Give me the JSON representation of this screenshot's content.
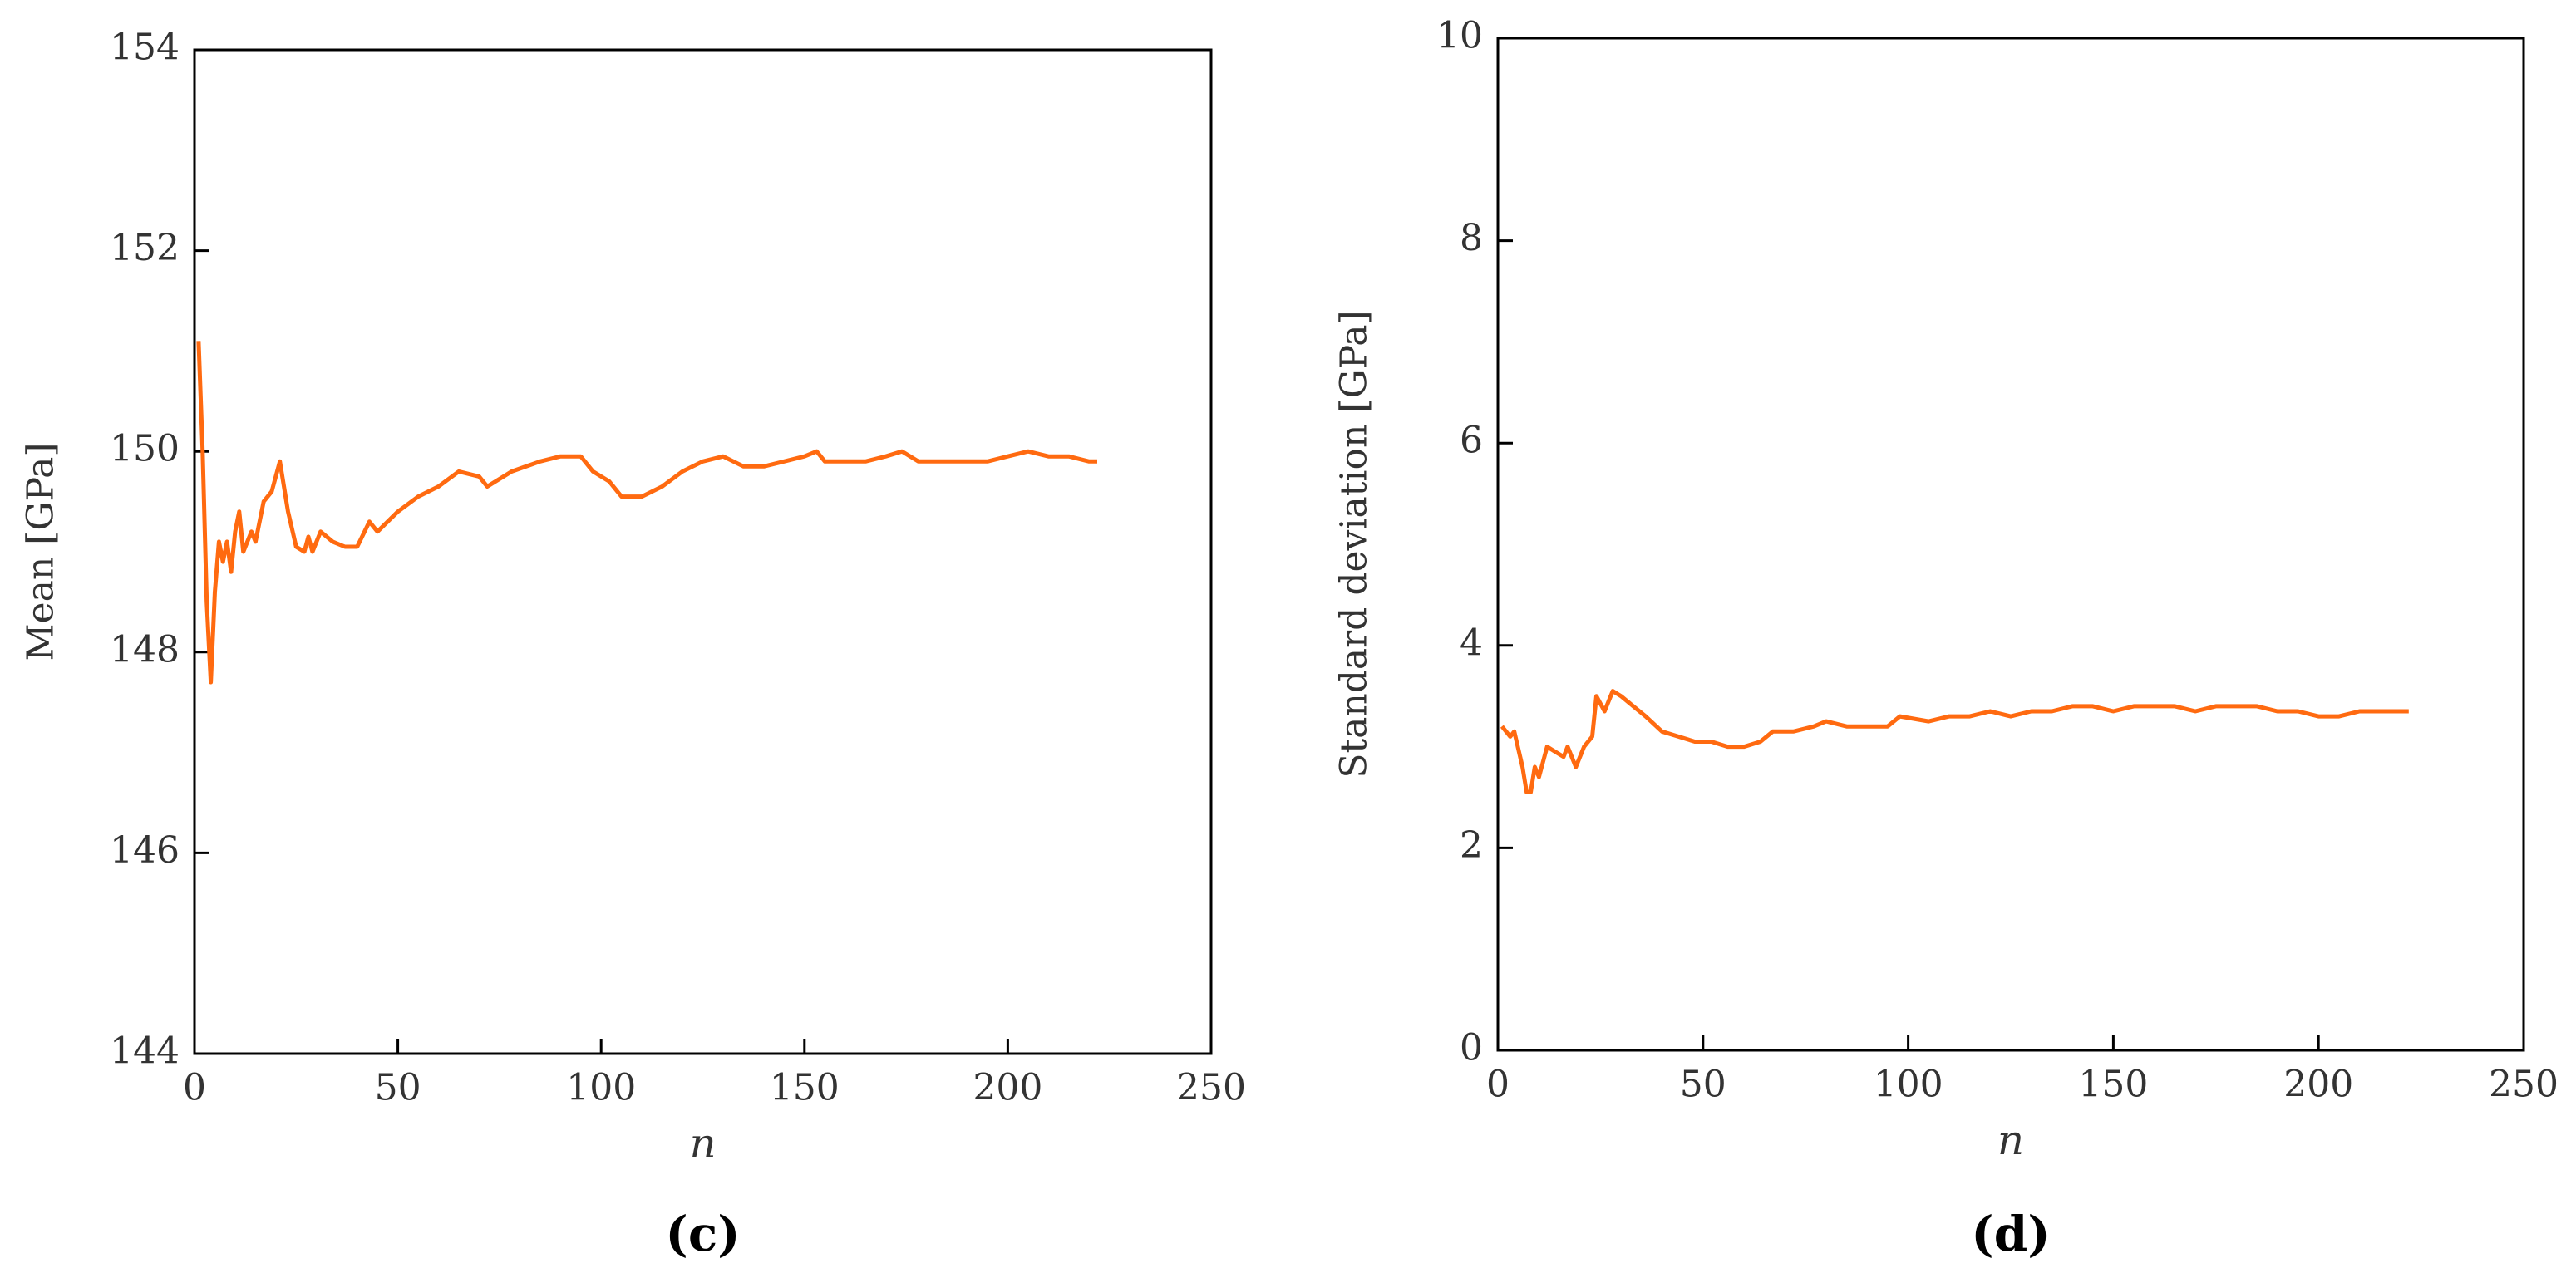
{
  "chart_data": [
    {
      "type": "line",
      "subtitle": "(c)",
      "x_label": "n",
      "y_label": "Mean  [GPa]",
      "color": "#ff6a10",
      "x": [
        1,
        2,
        3,
        4,
        5,
        6,
        7,
        8,
        9,
        10,
        11,
        12,
        14,
        15,
        17,
        19,
        21,
        23,
        25,
        27,
        28,
        29,
        31,
        34,
        37,
        40,
        43,
        45,
        50,
        55,
        60,
        65,
        70,
        72,
        78,
        85,
        90,
        95,
        98,
        102,
        105,
        110,
        115,
        120,
        125,
        130,
        135,
        140,
        145,
        150,
        153,
        155,
        160,
        165,
        170,
        174,
        178,
        185,
        190,
        195,
        200,
        205,
        210,
        215,
        220,
        222
      ],
      "values": [
        151.1,
        150,
        148.5,
        147.7,
        148.6,
        149.1,
        148.9,
        149.1,
        148.8,
        149.2,
        149.4,
        149.0,
        149.2,
        149.1,
        149.5,
        149.6,
        149.9,
        149.4,
        149.05,
        149.0,
        149.15,
        149.0,
        149.2,
        149.1,
        149.05,
        149.05,
        149.3,
        149.2,
        149.4,
        149.55,
        149.65,
        149.8,
        149.75,
        149.65,
        149.8,
        149.9,
        149.95,
        149.95,
        149.8,
        149.7,
        149.55,
        149.55,
        149.65,
        149.8,
        149.9,
        149.95,
        149.85,
        149.85,
        149.9,
        149.95,
        150.0,
        149.9,
        149.9,
        149.9,
        149.95,
        150.0,
        149.9,
        149.9,
        149.9,
        149.9,
        149.95,
        150.0,
        149.95,
        149.95,
        149.9,
        149.9
      ],
      "xlim": [
        0,
        250
      ],
      "ylim": [
        144,
        154
      ],
      "xticks": [
        0,
        50,
        100,
        150,
        200,
        250
      ],
      "yticks": [
        144,
        146,
        148,
        150,
        152,
        154
      ]
    },
    {
      "type": "line",
      "subtitle": "(d)",
      "x_label": "n",
      "y_label": "Standard  deviation  [GPa]",
      "color": "#ff6a10",
      "x": [
        1,
        3,
        4,
        6,
        7,
        8,
        9,
        10,
        12,
        14,
        16,
        17,
        19,
        21,
        23,
        24,
        26,
        28,
        30,
        33,
        36,
        40,
        44,
        48,
        52,
        56,
        60,
        64,
        67,
        72,
        77,
        80,
        85,
        90,
        95,
        98,
        105,
        110,
        115,
        120,
        125,
        130,
        135,
        140,
        145,
        150,
        155,
        160,
        165,
        170,
        175,
        180,
        185,
        190,
        195,
        200,
        205,
        210,
        215,
        220,
        222
      ],
      "values": [
        3.2,
        3.1,
        3.15,
        2.8,
        2.55,
        2.55,
        2.8,
        2.7,
        3.0,
        2.95,
        2.9,
        3.0,
        2.8,
        3.0,
        3.1,
        3.5,
        3.35,
        3.55,
        3.5,
        3.4,
        3.3,
        3.15,
        3.1,
        3.05,
        3.05,
        3.0,
        3.0,
        3.05,
        3.15,
        3.15,
        3.2,
        3.25,
        3.2,
        3.2,
        3.2,
        3.3,
        3.25,
        3.3,
        3.3,
        3.35,
        3.3,
        3.35,
        3.35,
        3.4,
        3.4,
        3.35,
        3.4,
        3.4,
        3.4,
        3.35,
        3.4,
        3.4,
        3.4,
        3.35,
        3.35,
        3.3,
        3.3,
        3.35,
        3.35,
        3.35,
        3.35
      ],
      "xlim": [
        0,
        250
      ],
      "ylim": [
        0,
        10
      ],
      "xticks": [
        0,
        50,
        100,
        150,
        200,
        250
      ],
      "yticks": [
        0,
        2,
        4,
        6,
        8,
        10
      ]
    }
  ]
}
